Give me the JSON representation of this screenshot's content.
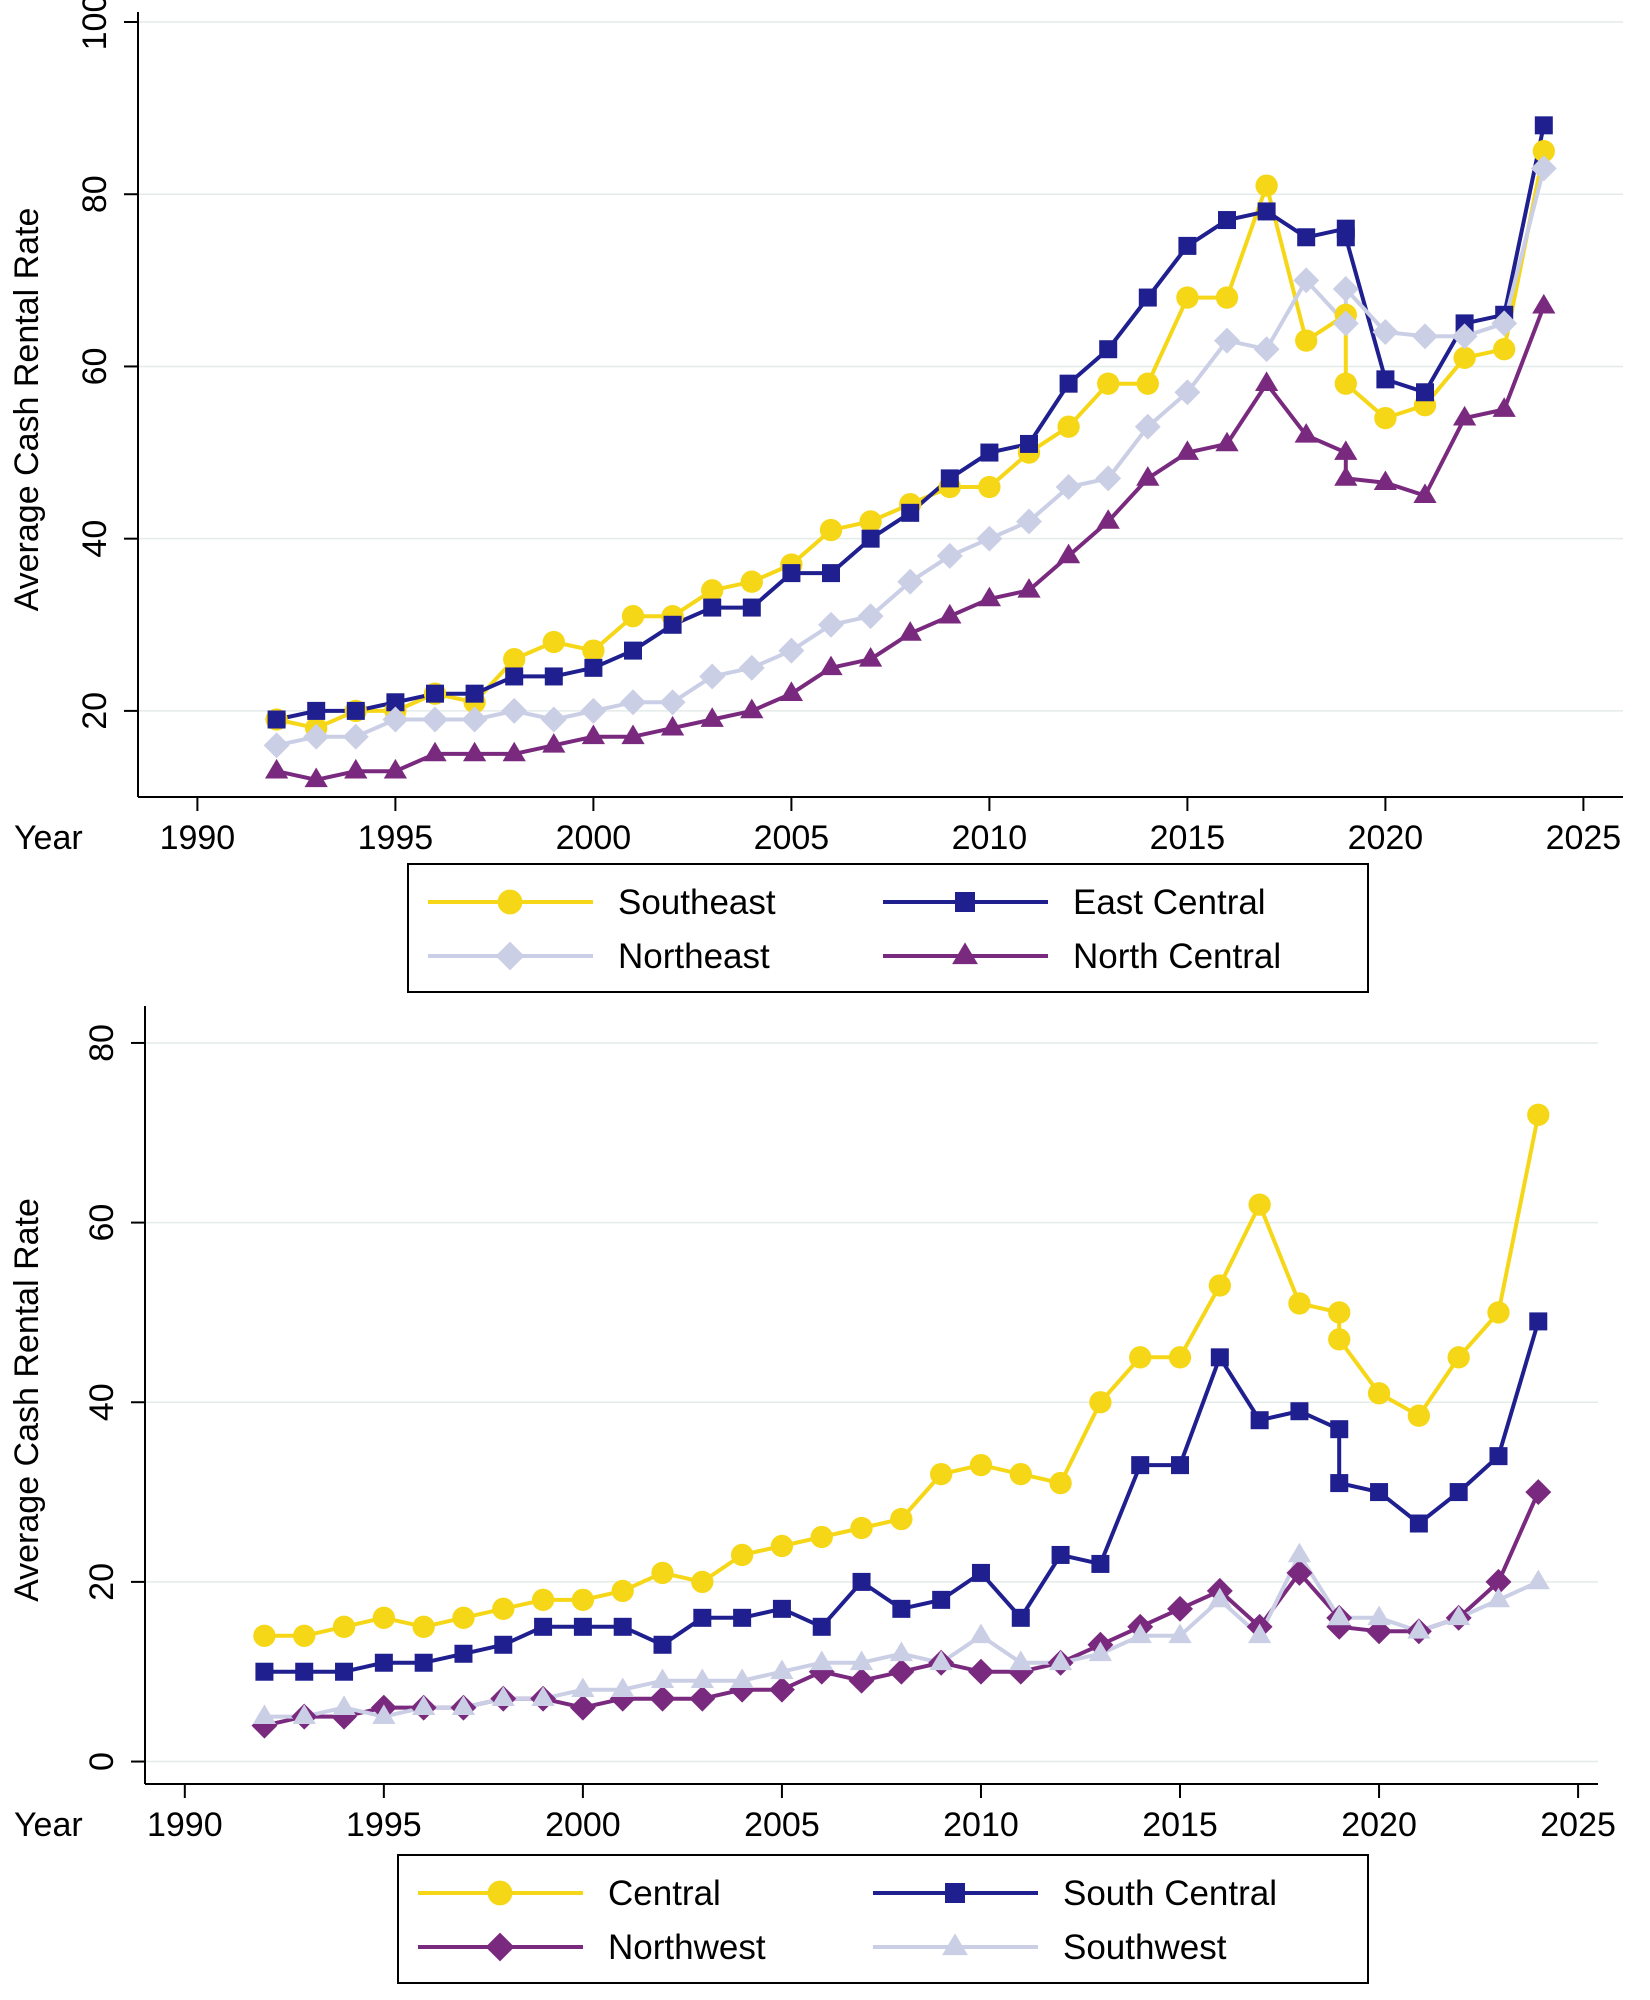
{
  "chart_data": [
    {
      "type": "line",
      "ylabel": "Average Cash Rental Rate",
      "xlabel": "Year",
      "xlim": [
        1988.5,
        2026
      ],
      "ylim": [
        10,
        100
      ],
      "xticks": [
        1990,
        1995,
        2000,
        2005,
        2010,
        2015,
        2020,
        2025
      ],
      "yticks": [
        20,
        40,
        60,
        80,
        100
      ],
      "grid": true,
      "legend_position": "bottom",
      "series": [
        {
          "name": "Southeast",
          "color": "#f5d717",
          "marker": "circle",
          "x": [
            1992,
            1993,
            1994,
            1995,
            1996,
            1997,
            1998,
            1999,
            2000,
            2001,
            2002,
            2003,
            2004,
            2005,
            2006,
            2007,
            2008,
            2009,
            2010,
            2011,
            2012,
            2013,
            2014,
            2015,
            2016,
            2017,
            2018,
            2019,
            2019,
            2020,
            2021,
            2022,
            2023,
            2024
          ],
          "y": [
            19,
            18,
            20,
            20,
            22,
            21,
            26,
            28,
            27,
            31,
            31,
            34,
            35,
            37,
            41,
            42,
            44,
            46,
            46,
            50,
            53,
            58,
            58,
            68,
            68,
            81,
            63,
            66,
            58,
            54,
            55.5,
            61,
            62,
            85
          ]
        },
        {
          "name": "East Central",
          "color": "#1f1f8f",
          "marker": "square",
          "x": [
            1992,
            1993,
            1994,
            1995,
            1996,
            1997,
            1998,
            1999,
            2000,
            2001,
            2002,
            2003,
            2004,
            2005,
            2006,
            2007,
            2008,
            2009,
            2010,
            2011,
            2012,
            2013,
            2014,
            2015,
            2016,
            2017,
            2018,
            2019,
            2019,
            2020,
            2021,
            2022,
            2023,
            2024
          ],
          "y": [
            19,
            20,
            20,
            21,
            22,
            22,
            24,
            24,
            25,
            27,
            30,
            32,
            32,
            36,
            36,
            40,
            43,
            47,
            50,
            51,
            58,
            62,
            68,
            74,
            77,
            78,
            75,
            76,
            75,
            58.5,
            57,
            65,
            66,
            88
          ]
        },
        {
          "name": "Northeast",
          "color": "#cbcfe6",
          "marker": "diamond",
          "x": [
            1992,
            1993,
            1994,
            1995,
            1996,
            1997,
            1998,
            1999,
            2000,
            2001,
            2002,
            2003,
            2004,
            2005,
            2006,
            2007,
            2008,
            2009,
            2010,
            2011,
            2012,
            2013,
            2014,
            2015,
            2016,
            2017,
            2018,
            2019,
            2019,
            2020,
            2021,
            2022,
            2023,
            2024
          ],
          "y": [
            16,
            17,
            17,
            19,
            19,
            19,
            20,
            19,
            20,
            21,
            21,
            24,
            25,
            27,
            30,
            31,
            35,
            38,
            40,
            42,
            46,
            47,
            53,
            57,
            63,
            62,
            70,
            65,
            69,
            64,
            63.5,
            63.5,
            65,
            83
          ]
        },
        {
          "name": "North Central",
          "color": "#7a2a7e",
          "marker": "triangle",
          "x": [
            1992,
            1993,
            1994,
            1995,
            1996,
            1997,
            1998,
            1999,
            2000,
            2001,
            2002,
            2003,
            2004,
            2005,
            2006,
            2007,
            2008,
            2009,
            2010,
            2011,
            2012,
            2013,
            2014,
            2015,
            2016,
            2017,
            2018,
            2019,
            2019,
            2020,
            2021,
            2022,
            2023,
            2024
          ],
          "y": [
            13,
            12,
            13,
            13,
            15,
            15,
            15,
            16,
            17,
            17,
            18,
            19,
            20,
            22,
            25,
            26,
            29,
            31,
            33,
            34,
            38,
            42,
            47,
            50,
            51,
            58,
            52,
            50,
            47,
            46.5,
            45,
            54,
            55,
            67
          ]
        }
      ]
    },
    {
      "type": "line",
      "ylabel": "Average Cash Rental Rate",
      "xlabel": "Year",
      "xlim": [
        1989,
        2025.5
      ],
      "ylim": [
        -2.5,
        83
      ],
      "xticks": [
        1990,
        1995,
        2000,
        2005,
        2010,
        2015,
        2020,
        2025
      ],
      "yticks": [
        0,
        20,
        40,
        60,
        80
      ],
      "grid": true,
      "legend_position": "bottom",
      "series": [
        {
          "name": "Central",
          "color": "#f5d717",
          "marker": "circle",
          "x": [
            1992,
            1993,
            1994,
            1995,
            1996,
            1997,
            1998,
            1999,
            2000,
            2001,
            2002,
            2003,
            2004,
            2005,
            2006,
            2007,
            2008,
            2009,
            2010,
            2011,
            2012,
            2013,
            2014,
            2015,
            2016,
            2017,
            2018,
            2019,
            2019,
            2020,
            2021,
            2022,
            2023,
            2024
          ],
          "y": [
            14,
            14,
            15,
            16,
            15,
            16,
            17,
            18,
            18,
            19,
            21,
            20,
            23,
            24,
            25,
            26,
            27,
            32,
            33,
            32,
            31,
            40,
            45,
            45,
            53,
            62,
            51,
            50,
            47,
            41,
            38.5,
            45,
            50,
            72
          ]
        },
        {
          "name": "South Central",
          "color": "#1f1f8f",
          "marker": "square",
          "x": [
            1992,
            1993,
            1994,
            1995,
            1996,
            1997,
            1998,
            1999,
            2000,
            2001,
            2002,
            2003,
            2004,
            2005,
            2006,
            2007,
            2008,
            2009,
            2010,
            2011,
            2012,
            2013,
            2014,
            2015,
            2016,
            2017,
            2018,
            2019,
            2019,
            2020,
            2021,
            2022,
            2023,
            2024
          ],
          "y": [
            10,
            10,
            10,
            11,
            11,
            12,
            13,
            15,
            15,
            15,
            13,
            16,
            16,
            17,
            15,
            20,
            17,
            18,
            21,
            16,
            23,
            22,
            33,
            33,
            45,
            38,
            39,
            37,
            31,
            30,
            26.5,
            30,
            34,
            49
          ]
        },
        {
          "name": "Northwest",
          "color": "#7a2a7e",
          "marker": "diamond",
          "x": [
            1992,
            1993,
            1994,
            1995,
            1996,
            1997,
            1998,
            1999,
            2000,
            2001,
            2002,
            2003,
            2004,
            2005,
            2006,
            2007,
            2008,
            2009,
            2010,
            2011,
            2012,
            2013,
            2014,
            2015,
            2016,
            2017,
            2018,
            2019,
            2019,
            2020,
            2021,
            2022,
            2023,
            2024
          ],
          "y": [
            4,
            5,
            5,
            6,
            6,
            6,
            7,
            7,
            6,
            7,
            7,
            7,
            8,
            8,
            10,
            9,
            10,
            11,
            10,
            10,
            11,
            13,
            15,
            17,
            19,
            15,
            21,
            16,
            15,
            14.5,
            14.5,
            16,
            20,
            30
          ]
        },
        {
          "name": "Southwest",
          "color": "#cbcfe6",
          "marker": "triangle",
          "x": [
            1992,
            1993,
            1994,
            1995,
            1996,
            1997,
            1998,
            1999,
            2000,
            2001,
            2002,
            2003,
            2004,
            2005,
            2006,
            2007,
            2008,
            2009,
            2010,
            2011,
            2012,
            2013,
            2014,
            2015,
            2016,
            2017,
            2018,
            2019,
            2019,
            2020,
            2021,
            2022,
            2023,
            2024
          ],
          "y": [
            5,
            5,
            6,
            5,
            6,
            6,
            7,
            7,
            8,
            8,
            9,
            9,
            9,
            10,
            11,
            11,
            12,
            11,
            14,
            11,
            11,
            12,
            14,
            14,
            18,
            14,
            23,
            16,
            16,
            16,
            14.5,
            16,
            18,
            20
          ]
        }
      ]
    }
  ]
}
